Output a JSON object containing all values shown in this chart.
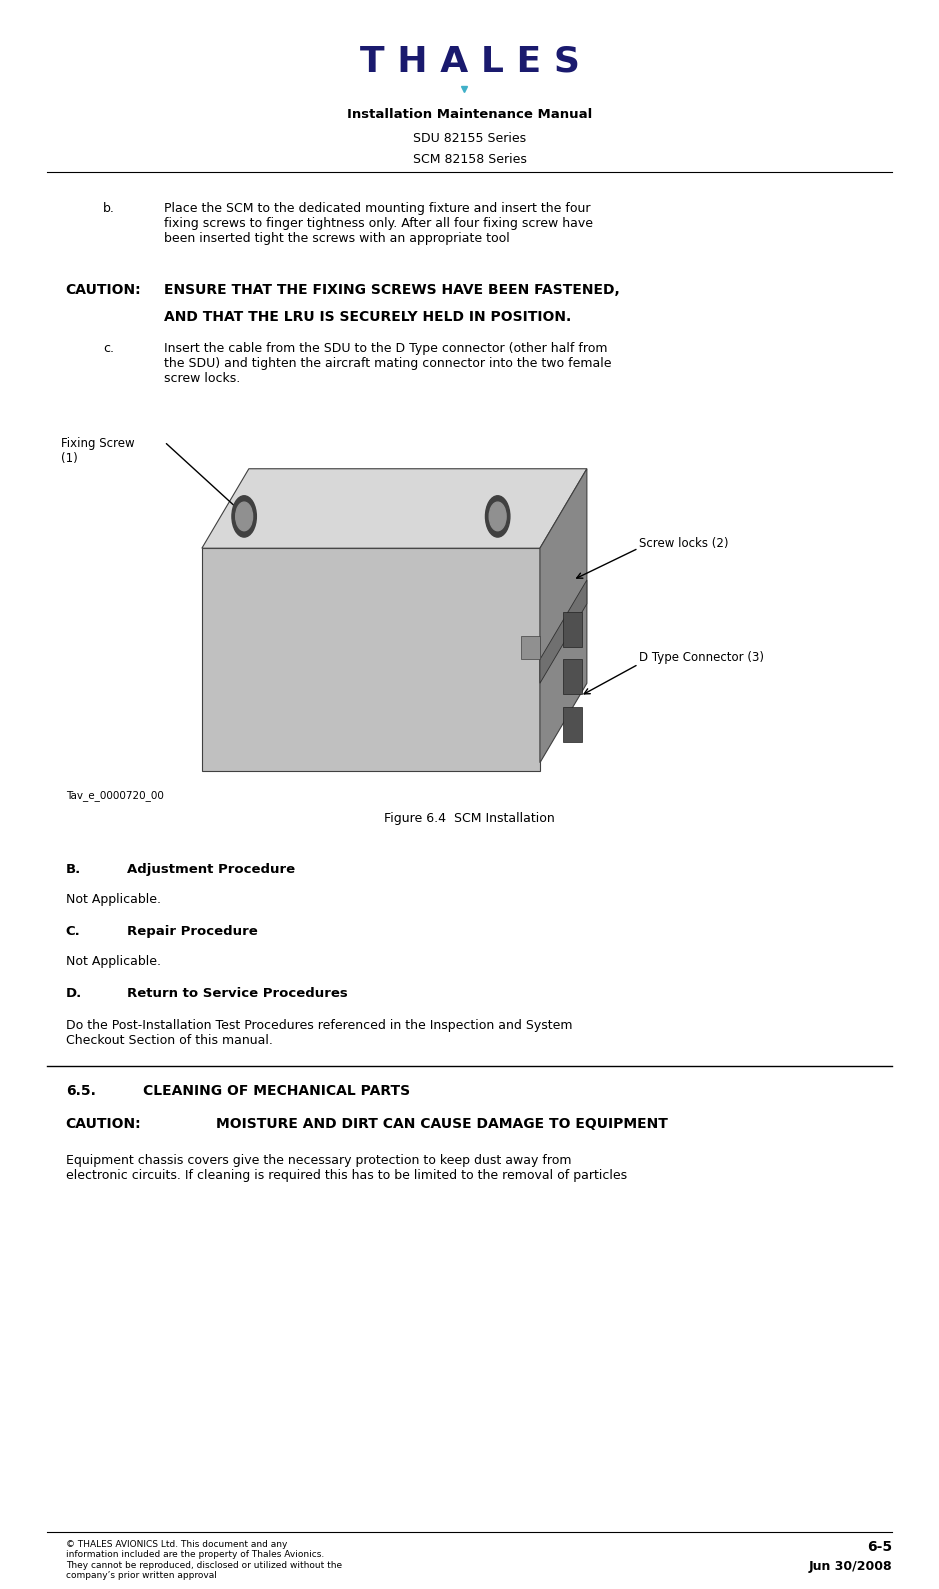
{
  "page_width": 9.39,
  "page_height": 15.89,
  "bg_color": "#ffffff",
  "thales_logo_text": "T H A L E S",
  "thales_color": "#1a1a6e",
  "thales_diamond_color": "#40b0c8",
  "header_line1": "Installation Maintenance Manual",
  "header_line2": "SDU 82155 Series",
  "header_line3": "SCM 82158 Series",
  "section_b_text": "Not Applicable.",
  "section_c_text": "Not Applicable.",
  "caution2_text": "MOISTURE AND DIRT CAN CAUSE DAMAGE TO EQUIPMENT",
  "figure_caption": "Figure 6.4  SCM Installation",
  "figure_label_tag1": "D Type Connector (3)",
  "figure_label_tag2": "Screw locks (2)",
  "figure_label_tag3": "Fixing Screw\n(1)",
  "figure_ref": "Tav_e_0000720_00",
  "footer_left": "© THALES AVIONICS Ltd. This document and any\ninformation included are the property of Thales Avionics.\nThey cannot be reproduced, disclosed or utilized without the\ncompany’s prior written approval",
  "footer_right_line1": "6-5",
  "footer_right_line2": "Jun 30/2008"
}
